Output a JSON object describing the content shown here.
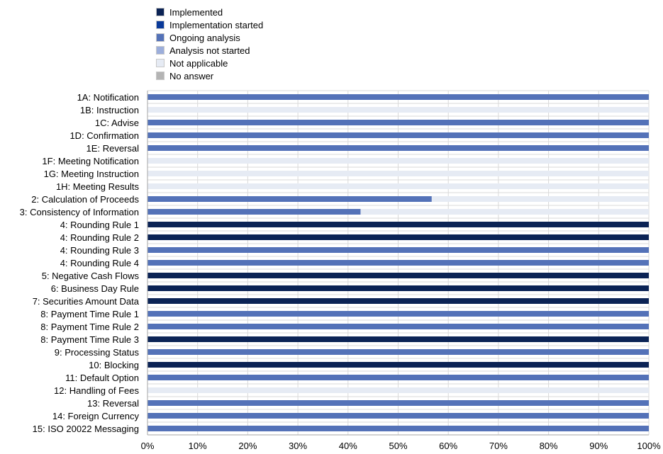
{
  "chart_data": {
    "type": "bar",
    "orientation": "horizontal",
    "stacked": true,
    "percent": true,
    "xlim": [
      0,
      100
    ],
    "x_ticks": [
      "0%",
      "10%",
      "20%",
      "30%",
      "40%",
      "50%",
      "60%",
      "70%",
      "80%",
      "90%",
      "100%"
    ],
    "legend_position": "top",
    "grid": "vertical",
    "categories": [
      "1A: Notification",
      "1B: Instruction",
      "1C: Advise",
      "1D: Confirmation",
      "1E:  Reversal",
      "1F: Meeting Notification",
      "1G: Meeting Instruction",
      "1H: Meeting Results",
      "2: Calculation of Proceeds",
      "3: Consistency of Information",
      "4: Rounding Rule 1",
      "4: Rounding Rule 2",
      "4: Rounding Rule 3",
      "4: Rounding Rule 4",
      "5: Negative Cash Flows",
      "6: Business Day Rule",
      "7: Securities Amount Data",
      "8: Payment Time Rule 1",
      "8: Payment Time Rule 2",
      "8: Payment Time Rule 3",
      "9: Processing Status",
      "10: Blocking",
      "11: Default Option",
      "12: Handling of Fees",
      "13: Reversal",
      "14: Foreign Currency",
      "15: ISO 20022 Messaging"
    ],
    "series": [
      {
        "name": "Implemented",
        "color": "#0b2355",
        "values": [
          0,
          0,
          0,
          0,
          0,
          0,
          0,
          0,
          0,
          0,
          100,
          100,
          0,
          0,
          100,
          100,
          100,
          0,
          0,
          100,
          0,
          100,
          0,
          0,
          0,
          0,
          0
        ]
      },
      {
        "name": "Implementation started",
        "color": "#0a3a9a",
        "values": [
          0,
          0,
          0,
          0,
          0,
          0,
          0,
          0,
          0,
          0,
          0,
          0,
          0,
          0,
          0,
          0,
          0,
          0,
          0,
          0,
          0,
          0,
          0,
          0,
          0,
          0,
          0
        ]
      },
      {
        "name": "Ongoing analysis",
        "color": "#5472b8",
        "values": [
          100,
          0,
          100,
          100,
          100,
          0,
          0,
          0,
          56.7,
          42.5,
          0,
          0,
          100,
          100,
          0,
          0,
          0,
          100,
          100,
          0,
          100,
          0,
          100,
          0,
          100,
          100,
          100
        ]
      },
      {
        "name": "Analysis not started",
        "color": "#9caedb",
        "values": [
          0,
          0,
          0,
          0,
          0,
          0,
          0,
          0,
          0,
          0,
          0,
          0,
          0,
          0,
          0,
          0,
          0,
          0,
          0,
          0,
          0,
          0,
          0,
          0,
          0,
          0,
          0
        ]
      },
      {
        "name": "Not applicable",
        "color": "#e6ebf4",
        "values": [
          0,
          100,
          0,
          0,
          0,
          100,
          100,
          100,
          43.3,
          57.5,
          0,
          0,
          0,
          0,
          0,
          0,
          0,
          0,
          0,
          0,
          0,
          0,
          0,
          100,
          0,
          0,
          0
        ]
      },
      {
        "name": "No answer",
        "color": "#b4b4b4",
        "values": [
          0,
          0,
          0,
          0,
          0,
          0,
          0,
          0,
          0,
          0,
          0,
          0,
          0,
          0,
          0,
          0,
          0,
          0,
          0,
          0,
          0,
          0,
          0,
          0,
          0,
          0,
          0
        ]
      }
    ]
  }
}
